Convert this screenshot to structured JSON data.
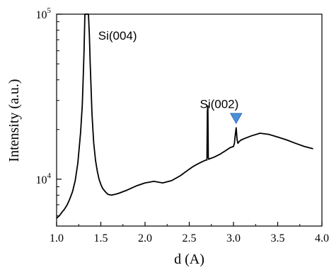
{
  "chart_data": {
    "type": "line",
    "title": "",
    "xlabel": "d (A)",
    "ylabel": "Intensity (a.u.)",
    "xlim": [
      1.0,
      4.0
    ],
    "ylim": [
      5200,
      100000
    ],
    "yscale": "log",
    "x_ticks": [
      1.0,
      1.5,
      2.0,
      2.5,
      3.0,
      3.5,
      4.0
    ],
    "x_tick_labels": [
      "1.0",
      "1.5",
      "2.0",
      "2.5",
      "3.0",
      "3.5",
      "4.0"
    ],
    "y_tick_labels": [
      {
        "value": 10000,
        "base": "10",
        "exp": "4"
      },
      {
        "value": 100000,
        "base": "10",
        "exp": "5"
      }
    ],
    "grid": false,
    "legend": "none",
    "colors": {
      "line": "#000000",
      "marker": "#4a90d9",
      "marker_stroke": "#2f6fb0"
    },
    "annotations": [
      {
        "text": "Si(004)",
        "x": 1.47,
        "y": 70000
      },
      {
        "text": "Si(002)",
        "x": 2.62,
        "y": 27000
      }
    ],
    "markers": [
      {
        "shape": "triangle-down",
        "x": 3.03,
        "y": 21800
      }
    ],
    "series": [
      {
        "x": [
          1.0,
          1.03,
          1.06,
          1.09,
          1.12,
          1.15,
          1.18,
          1.21,
          1.24,
          1.27,
          1.29,
          1.3,
          1.31,
          1.32,
          1.33,
          1.34,
          1.35,
          1.36,
          1.37,
          1.38,
          1.39,
          1.4,
          1.41,
          1.42,
          1.44,
          1.46,
          1.48,
          1.5,
          1.52,
          1.55,
          1.58,
          1.62,
          1.66,
          1.7,
          1.75,
          1.8,
          1.9,
          2.0,
          2.1,
          2.2,
          2.3,
          2.4,
          2.5,
          2.55,
          2.6,
          2.65,
          2.68,
          2.7,
          2.705,
          2.71,
          2.715,
          2.72,
          2.73,
          2.78,
          2.85,
          2.92,
          2.96,
          3.0,
          3.01,
          3.02,
          3.03,
          3.04,
          3.05,
          3.06,
          3.08,
          3.12,
          3.2,
          3.3,
          3.4,
          3.5,
          3.6,
          3.7,
          3.8,
          3.9
        ],
        "y": [
          5800,
          6000,
          6300,
          6600,
          7000,
          7600,
          8400,
          9800,
          12500,
          19000,
          28000,
          40000,
          60000,
          100000,
          100000,
          100000,
          100000,
          100000,
          75000,
          50000,
          35000,
          25000,
          20000,
          16500,
          13000,
          11200,
          10000,
          9300,
          8800,
          8400,
          8100,
          8000,
          8100,
          8200,
          8400,
          8600,
          9100,
          9500,
          9700,
          9500,
          9800,
          10500,
          11500,
          12000,
          12400,
          12800,
          13000,
          13100,
          26000,
          27800,
          13500,
          13200,
          13300,
          13600,
          14200,
          15000,
          15500,
          15800,
          16500,
          18500,
          20500,
          17500,
          16500,
          16800,
          17200,
          17600,
          18300,
          19000,
          18700,
          18000,
          17300,
          16500,
          15800,
          15300
        ]
      }
    ]
  }
}
